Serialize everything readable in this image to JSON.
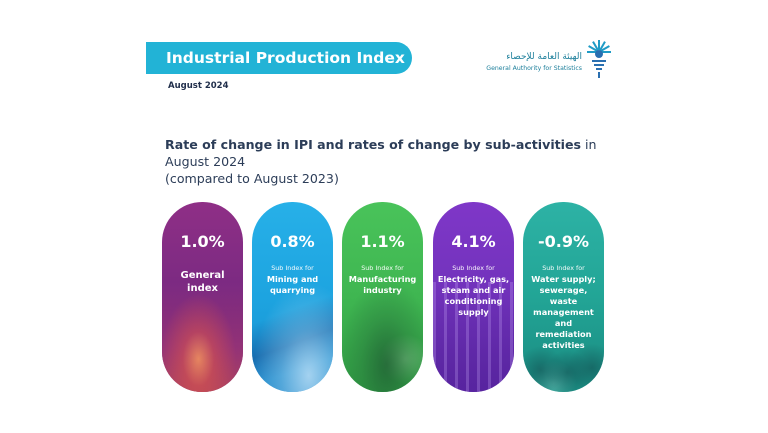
{
  "header": {
    "title": "Industrial Production Index",
    "date": "August 2024"
  },
  "logo": {
    "arabic": "الهيئة العامة للإحصاء",
    "english": "General Authority for Statistics"
  },
  "headline": {
    "bold": "Rate of change in IPI and rates of change by sub-activities",
    "normal": " in August 2024",
    "line2": "(compared to August 2023)"
  },
  "colors": {
    "banner": "#22b3d6",
    "general": "#7b2a82",
    "mining": "#1da4e0",
    "manufacturing": "#3fb651",
    "electricity": "#7132bb",
    "water": "#22a596"
  },
  "cards": [
    {
      "value": "1.0%",
      "sublabel": "",
      "name": "General index"
    },
    {
      "value": "0.8%",
      "sublabel": "Sub Index for",
      "name": "Mining and quarrying"
    },
    {
      "value": "1.1%",
      "sublabel": "Sub Index for",
      "name": "Manufacturing industry"
    },
    {
      "value": "4.1%",
      "sublabel": "Sub Index for",
      "name": "Electricity, gas, steam and air conditioning supply"
    },
    {
      "value": "-0.9%",
      "sublabel": "Sub Index for",
      "name": "Water supply; sewerage, waste management and remediation activities"
    }
  ]
}
